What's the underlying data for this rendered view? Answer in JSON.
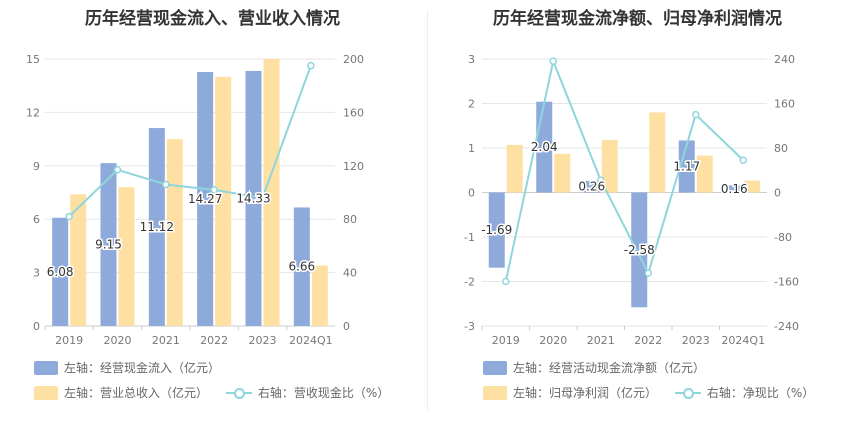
{
  "chart_data": [
    {
      "type": "bar",
      "title": "历年经营现金流入、营业收入情况",
      "categories": [
        "2019",
        "2020",
        "2021",
        "2022",
        "2023",
        "2024Q1"
      ],
      "y_left": {
        "range": [
          0,
          15
        ],
        "ticks": [
          "0",
          "3",
          "6",
          "9",
          "12",
          "15"
        ]
      },
      "y_right": {
        "range": [
          0,
          200
        ],
        "ticks": [
          "0",
          "40",
          "80",
          "120",
          "160",
          "200"
        ]
      },
      "series": [
        {
          "name": "左轴：经营现金流入（亿元）",
          "type": "bar",
          "axis": "left",
          "color": "#8eaadb",
          "values": [
            6.08,
            9.15,
            11.12,
            14.27,
            14.33,
            6.66
          ],
          "labels": [
            "6.08",
            "9.15",
            "11.12",
            "14.27",
            "14.33",
            "6.66"
          ]
        },
        {
          "name": "左轴：营业总收入（亿元）",
          "type": "bar",
          "axis": "left",
          "color": "#ffe0a3",
          "values": [
            7.4,
            7.8,
            10.5,
            14.0,
            15.0,
            3.4
          ]
        },
        {
          "name": "右轴：营收现金比（%）",
          "type": "line",
          "axis": "right",
          "color": "#8fd6dc",
          "values": [
            82,
            117,
            106,
            102,
            96,
            195
          ]
        }
      ],
      "legend_position": "bottom-left",
      "grid": true
    },
    {
      "type": "bar",
      "title": "历年经营现金流净额、归母净利润情况",
      "categories": [
        "2019",
        "2020",
        "2021",
        "2022",
        "2023",
        "2024Q1"
      ],
      "y_left": {
        "range": [
          -3,
          3
        ],
        "ticks": [
          "-3",
          "-2",
          "-1",
          "0",
          "1",
          "2",
          "3"
        ]
      },
      "y_right": {
        "range": [
          -240,
          240
        ],
        "ticks": [
          "-240",
          "-160",
          "-80",
          "0",
          "80",
          "160",
          "240"
        ]
      },
      "series": [
        {
          "name": "左轴：经营活动现金流净额（亿元）",
          "type": "bar",
          "axis": "left",
          "color": "#8eaadb",
          "values": [
            -1.69,
            2.04,
            0.26,
            -2.58,
            1.17,
            0.16
          ],
          "labels": [
            "-1.69",
            "2.04",
            "0.26",
            "-2.58",
            "1.17",
            "0.16"
          ]
        },
        {
          "name": "左轴：归母净利润（亿元）",
          "type": "bar",
          "axis": "left",
          "color": "#ffe0a3",
          "values": [
            1.07,
            0.87,
            1.18,
            1.8,
            0.83,
            0.27
          ]
        },
        {
          "name": "右轴：净现比（%）",
          "type": "line",
          "axis": "right",
          "color": "#8fd6dc",
          "values": [
            -160,
            236,
            22,
            -145,
            140,
            58
          ]
        }
      ],
      "legend_position": "bottom-left",
      "grid": true
    }
  ]
}
